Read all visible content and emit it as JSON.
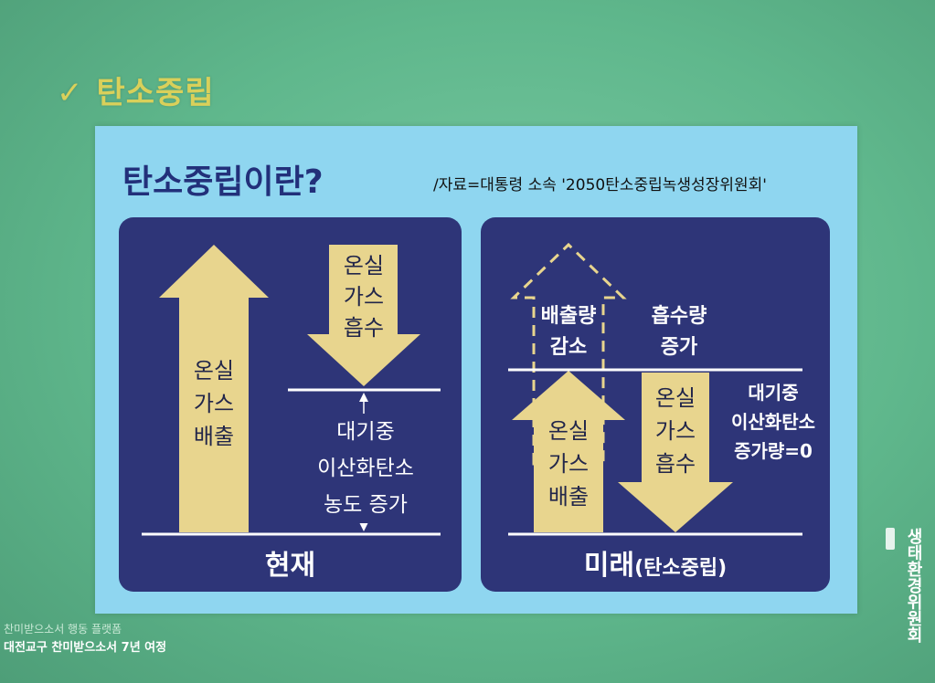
{
  "slide": {
    "heading": "탄소중립",
    "check_glyph": "✓"
  },
  "panel": {
    "title": "탄소중립이란?",
    "source": "/자료=대통령 소속 '2050탄소중립녹생성장위원회'"
  },
  "present": {
    "emission_lines": [
      "온실",
      "가스",
      "배출"
    ],
    "absorption_lines": [
      "온실",
      "가스",
      "흡수"
    ],
    "increase_lines": [
      "대기중",
      "이산화탄소",
      "농도 증가"
    ],
    "caption": "현재"
  },
  "future": {
    "reduce_lines": [
      "배출량",
      "감소"
    ],
    "absorb_increase_lines": [
      "흡수량",
      "증가"
    ],
    "emission_lines": [
      "온실",
      "가스",
      "배출"
    ],
    "absorption_lines": [
      "온실",
      "가스",
      "흡수"
    ],
    "zero_lines": [
      "대기중",
      "이산화탄소",
      "증가량=0"
    ],
    "caption_main": "미래",
    "caption_sub": "(탄소중립)"
  },
  "footer": {
    "line1": "찬미받으소서 행동 플랫폼",
    "line2": "대전교구 찬미받으소서 7년 여정",
    "logo": "생태환경위원회"
  },
  "colors": {
    "arrow": "#e8d58e",
    "box": "#2e3578",
    "panel": "#8fd6f0",
    "heading": "#d9d05a"
  }
}
